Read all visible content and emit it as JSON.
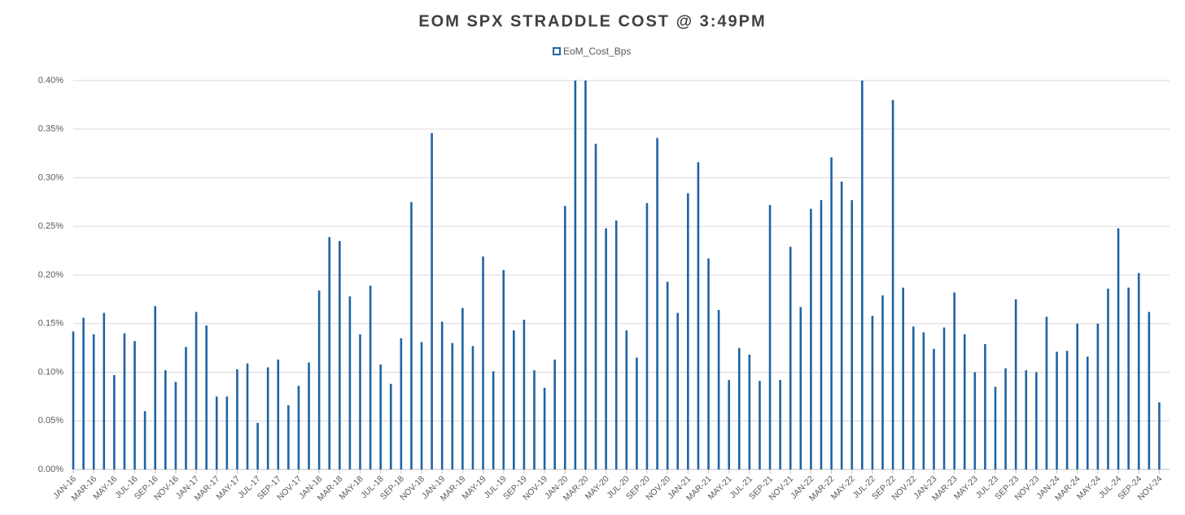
{
  "chart_data": {
    "type": "bar",
    "title": "EOM SPX STRADDLE COST @ 3:49PM",
    "series": [
      {
        "name": "EoM_Cost_Bps",
        "color": "#1f63a6",
        "values": [
          0.142,
          0.156,
          0.139,
          0.161,
          0.097,
          0.14,
          0.132,
          0.06,
          0.168,
          0.102,
          0.09,
          0.126,
          0.162,
          0.148,
          0.075,
          0.075,
          0.103,
          0.109,
          0.048,
          0.105,
          0.113,
          0.066,
          0.086,
          0.11,
          0.184,
          0.239,
          0.235,
          0.178,
          0.139,
          0.189,
          0.108,
          0.088,
          0.135,
          0.275,
          0.131,
          0.346,
          0.152,
          0.13,
          0.166,
          0.127,
          0.219,
          0.101,
          0.205,
          0.143,
          0.154,
          0.102,
          0.084,
          0.113,
          0.271,
          0.4,
          0.4,
          0.335,
          0.248,
          0.256,
          0.143,
          0.115,
          0.274,
          0.341,
          0.193,
          0.161,
          0.284,
          0.316,
          0.217,
          0.164,
          0.092,
          0.125,
          0.118,
          0.091,
          0.272,
          0.092,
          0.229,
          0.167,
          0.268,
          0.277,
          0.321,
          0.296,
          0.277,
          0.4,
          0.158,
          0.179,
          0.38,
          0.187,
          0.147,
          0.141,
          0.124,
          0.146,
          0.182,
          0.139,
          0.1,
          0.129,
          0.085,
          0.104,
          0.175,
          0.102,
          0.1,
          0.157,
          0.121,
          0.122,
          0.15,
          0.116,
          0.15,
          0.186,
          0.248,
          0.187,
          0.202,
          0.162,
          0.069
        ]
      }
    ],
    "categories": [
      "JAN-16",
      null,
      "MAR-16",
      null,
      "MAY-16",
      null,
      "JUL-16",
      null,
      "SEP-16",
      null,
      "NOV-16",
      null,
      "JAN-17",
      null,
      "MAR-17",
      null,
      "MAY-17",
      null,
      "JUL-17",
      null,
      "SEP-17",
      null,
      "NOV-17",
      null,
      "JAN-18",
      null,
      "MAR-18",
      null,
      "MAY-18",
      null,
      "JUL-18",
      null,
      "SEP-18",
      null,
      "NOV-18",
      null,
      "JAN-19",
      null,
      "MAR-19",
      null,
      "MAY-19",
      null,
      "JUL-19",
      null,
      "SEP-19",
      null,
      "NOV-19",
      null,
      "JAN-20",
      null,
      "MAR-20",
      null,
      "MAY-20",
      null,
      "JUL-20",
      null,
      "SEP-20",
      null,
      "NOV-20",
      null,
      "JAN-21",
      null,
      "MAR-21",
      null,
      "MAY-21",
      null,
      "JUL-21",
      null,
      "SEP-21",
      null,
      "NOV-21",
      null,
      "JAN-22",
      null,
      "MAR-22",
      null,
      "MAY-22",
      null,
      "JUL-22",
      null,
      "SEP-22",
      null,
      "NOV-22",
      null,
      "JAN-23",
      null,
      "MAR-23",
      null,
      "MAY-23",
      null,
      "JUL-23",
      null,
      "SEP-23",
      null,
      "NOV-23",
      null,
      "JAN-24",
      null,
      "MAR-24",
      null,
      "MAY-24",
      null,
      "JUL-24",
      null,
      "SEP-24",
      null,
      "NOV-24"
    ],
    "ylim": [
      0,
      0.4
    ],
    "yticks": [
      {
        "value": 0,
        "label": "0.00%"
      },
      {
        "value": 0.05,
        "label": "0.05%"
      },
      {
        "value": 0.1,
        "label": "0.10%"
      },
      {
        "value": 0.15,
        "label": "0.15%"
      },
      {
        "value": 0.2,
        "label": "0.20%"
      },
      {
        "value": 0.25,
        "label": "0.25%"
      },
      {
        "value": 0.3,
        "label": "0.30%"
      },
      {
        "value": 0.35,
        "label": "0.35%"
      },
      {
        "value": 0.4,
        "label": "0.40%"
      }
    ],
    "grid": true,
    "legend": "top"
  }
}
